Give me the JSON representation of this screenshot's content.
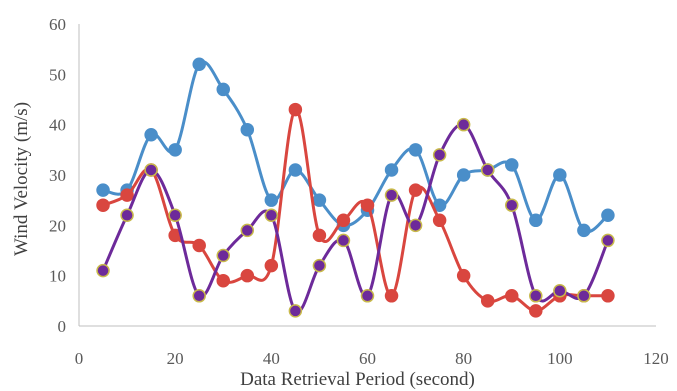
{
  "chart_data": {
    "type": "line",
    "title": "",
    "xlabel": "Data Retrieval Period (second)",
    "ylabel": "Wind Velocity (m/s)",
    "xlim": [
      0,
      120
    ],
    "ylim": [
      0,
      60
    ],
    "xticks": [
      0,
      20,
      40,
      60,
      80,
      100,
      120
    ],
    "yticks": [
      0,
      10,
      20,
      30,
      40,
      50,
      60
    ],
    "grid": false,
    "legend": "none",
    "x": [
      5,
      10,
      15,
      20,
      25,
      30,
      35,
      40,
      45,
      50,
      55,
      60,
      65,
      70,
      75,
      80,
      85,
      90,
      95,
      100,
      105,
      110
    ],
    "series": [
      {
        "color": "#4a8ec9",
        "marker_fill": "#4a8ec9",
        "marker_stroke": "#4a8ec9",
        "values": [
          27,
          27,
          38,
          35,
          52,
          47,
          39,
          25,
          31,
          25,
          20,
          23,
          31,
          35,
          24,
          30,
          31,
          32,
          21,
          30,
          19,
          22
        ]
      },
      {
        "color": "#d9463f",
        "marker_fill": "#d9463f",
        "marker_stroke": "#d9463f",
        "values": [
          24,
          26,
          31,
          18,
          16,
          9,
          10,
          12,
          43,
          18,
          21,
          24,
          6,
          27,
          21,
          10,
          5,
          6,
          3,
          6,
          6,
          6
        ]
      },
      {
        "color": "#6d2a9a",
        "marker_fill": "#6d2a9a",
        "marker_stroke": "#c8b94a",
        "values": [
          11,
          22,
          31,
          22,
          6,
          14,
          19,
          22,
          3,
          12,
          17,
          6,
          26,
          20,
          34,
          40,
          31,
          24,
          6,
          7,
          6,
          17
        ]
      }
    ]
  }
}
